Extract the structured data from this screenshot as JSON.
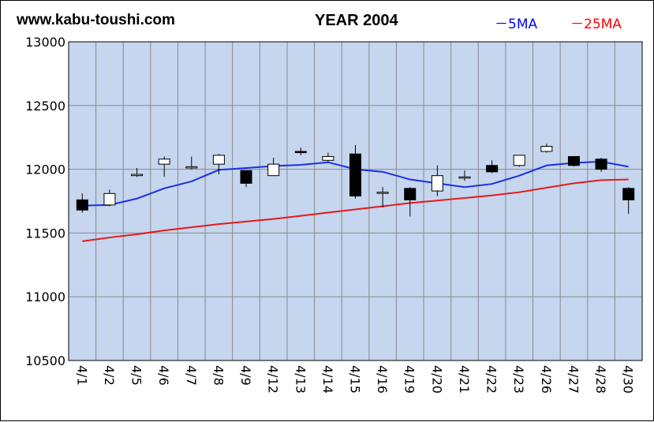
{
  "header": {
    "site": "www.kabu-toushi.com",
    "title": "YEAR 2004"
  },
  "legend": {
    "ma5": "－5MA",
    "ma25": "－25MA"
  },
  "colors": {
    "plot_bg": "#c5d6ee",
    "grid": "#8a8a8a",
    "ma5": "#1a2fe6",
    "ma25": "#e41a1a",
    "up_fill": "#ffffff",
    "down_fill": "#000000"
  },
  "chart_data": {
    "type": "candlestick",
    "title": "YEAR 2004",
    "ylim": [
      10500,
      13000
    ],
    "yticks": [
      13000,
      12500,
      12000,
      11500,
      11000,
      10500
    ],
    "categories": [
      "4/1",
      "4/2",
      "4/5",
      "4/6",
      "4/7",
      "4/8",
      "4/9",
      "4/12",
      "4/13",
      "4/14",
      "4/15",
      "4/16",
      "4/19",
      "4/20",
      "4/21",
      "4/22",
      "4/23",
      "4/26",
      "4/27",
      "4/28",
      "4/30"
    ],
    "series": [
      {
        "name": "candles",
        "open": [
          11760,
          11720,
          11950,
          12040,
          12010,
          12040,
          11990,
          11950,
          12140,
          12070,
          12120,
          11820,
          11850,
          11830,
          11940,
          12030,
          12030,
          12140,
          12100,
          12080,
          11850
        ],
        "close": [
          11680,
          11810,
          11960,
          12080,
          12020,
          12110,
          11890,
          12040,
          12130,
          12100,
          11790,
          11820,
          11760,
          11950,
          11940,
          11980,
          12110,
          12180,
          12030,
          12000,
          11760
        ],
        "high": [
          11810,
          11840,
          12010,
          12100,
          12100,
          12120,
          11990,
          12090,
          12170,
          12130,
          12190,
          11860,
          11860,
          12030,
          11990,
          12070,
          12110,
          12200,
          12100,
          12090,
          11860
        ],
        "low": [
          11660,
          11710,
          11940,
          11940,
          12000,
          11960,
          11860,
          11950,
          12110,
          12060,
          11770,
          11700,
          11630,
          11790,
          11910,
          11970,
          12020,
          12130,
          12020,
          11980,
          11650
        ]
      },
      {
        "name": "5MA",
        "values": [
          11715,
          11720,
          11770,
          11850,
          11905,
          11995,
          12010,
          12025,
          12035,
          12055,
          12000,
          11980,
          11920,
          11890,
          11860,
          11885,
          11950,
          12030,
          12050,
          12060,
          12020
        ]
      },
      {
        "name": "25MA",
        "values": [
          11435,
          11465,
          11490,
          11520,
          11545,
          11570,
          11590,
          11610,
          11635,
          11660,
          11685,
          11710,
          11735,
          11755,
          11775,
          11795,
          11820,
          11855,
          11890,
          11915,
          11920
        ]
      }
    ]
  }
}
